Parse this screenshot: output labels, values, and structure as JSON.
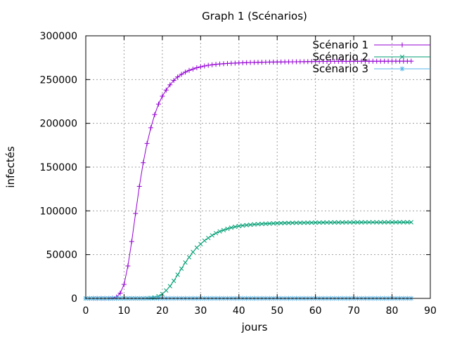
{
  "chart_data": {
    "type": "line",
    "title": "Graph 1 (Scénarios)",
    "xlabel": "jours",
    "ylabel": "infectés",
    "xlim": [
      0,
      90
    ],
    "ylim": [
      0,
      300000
    ],
    "xticks": [
      0,
      10,
      20,
      30,
      40,
      50,
      60,
      70,
      80,
      90
    ],
    "yticks": [
      0,
      50000,
      100000,
      150000,
      200000,
      250000,
      300000
    ],
    "grid": true,
    "legend_position": "top-right",
    "x": [
      0,
      1,
      2,
      3,
      4,
      5,
      6,
      7,
      8,
      9,
      10,
      11,
      12,
      13,
      14,
      15,
      16,
      17,
      18,
      19,
      20,
      21,
      22,
      23,
      24,
      25,
      26,
      27,
      28,
      29,
      30,
      31,
      32,
      33,
      34,
      35,
      36,
      37,
      38,
      39,
      40,
      41,
      42,
      43,
      44,
      45,
      46,
      47,
      48,
      49,
      50,
      51,
      52,
      53,
      54,
      55,
      56,
      57,
      58,
      59,
      60,
      61,
      62,
      63,
      64,
      65,
      66,
      67,
      68,
      69,
      70,
      71,
      72,
      73,
      74,
      75,
      76,
      77,
      78,
      79,
      80,
      81,
      82,
      83,
      84,
      85
    ],
    "series": [
      {
        "name": "Scénario 1",
        "color": "#9400d3",
        "marker": "plus",
        "values": [
          0,
          0,
          0,
          0,
          0,
          0,
          0,
          300,
          1500,
          6000,
          16000,
          37000,
          65000,
          97000,
          128000,
          155000,
          177000,
          195000,
          210000,
          222000,
          231000,
          238000,
          244000,
          249000,
          253000,
          256000,
          258500,
          260500,
          262000,
          263500,
          264500,
          265500,
          266300,
          266900,
          267400,
          267800,
          268100,
          268400,
          268600,
          268800,
          269000,
          269200,
          269350,
          269500,
          269600,
          269700,
          269800,
          269900,
          270000,
          270050,
          270100,
          270150,
          270200,
          270250,
          270300,
          270350,
          270400,
          270450,
          270500,
          270550,
          270600,
          270650,
          270700,
          270720,
          270740,
          270760,
          270780,
          270800,
          270820,
          270840,
          270860,
          270880,
          270900,
          270910,
          270920,
          270930,
          270940,
          270950,
          270960,
          270970,
          270980,
          270990,
          271000,
          271000,
          271000,
          271000
        ]
      },
      {
        "name": "Scénario 2",
        "color": "#009e73",
        "marker": "cross",
        "values": [
          0,
          0,
          0,
          0,
          0,
          0,
          0,
          0,
          0,
          0,
          0,
          0,
          0,
          0,
          0,
          0,
          200,
          500,
          1000,
          2500,
          5000,
          9000,
          14000,
          20000,
          27000,
          34000,
          41000,
          47000,
          53000,
          58000,
          62000,
          66000,
          69000,
          72000,
          74500,
          76500,
          78000,
          79500,
          80800,
          81800,
          82600,
          83200,
          83700,
          84100,
          84500,
          84800,
          85100,
          85300,
          85500,
          85700,
          85850,
          86000,
          86100,
          86200,
          86300,
          86350,
          86400,
          86450,
          86500,
          86550,
          86600,
          86650,
          86700,
          86720,
          86740,
          86760,
          86780,
          86800,
          86820,
          86840,
          86860,
          86880,
          86900,
          86910,
          86920,
          86930,
          86940,
          86950,
          86960,
          86970,
          86980,
          86990,
          87000,
          87000,
          87000,
          87000
        ]
      },
      {
        "name": "Scénario 3",
        "color": "#56b4e9",
        "marker": "star",
        "values": [
          0,
          0,
          0,
          0,
          0,
          0,
          0,
          0,
          0,
          0,
          0,
          0,
          0,
          0,
          0,
          0,
          0,
          0,
          0,
          0,
          0,
          0,
          0,
          0,
          0,
          0,
          0,
          0,
          0,
          0,
          0,
          0,
          0,
          0,
          0,
          0,
          0,
          0,
          0,
          0,
          0,
          0,
          0,
          0,
          0,
          0,
          0,
          0,
          0,
          0,
          0,
          0,
          0,
          0,
          0,
          0,
          0,
          0,
          0,
          0,
          0,
          0,
          0,
          0,
          0,
          0,
          0,
          0,
          0,
          0,
          0,
          0,
          0,
          0,
          0,
          0,
          0,
          0,
          0,
          0,
          0,
          0,
          0,
          0,
          0,
          0
        ]
      }
    ]
  }
}
